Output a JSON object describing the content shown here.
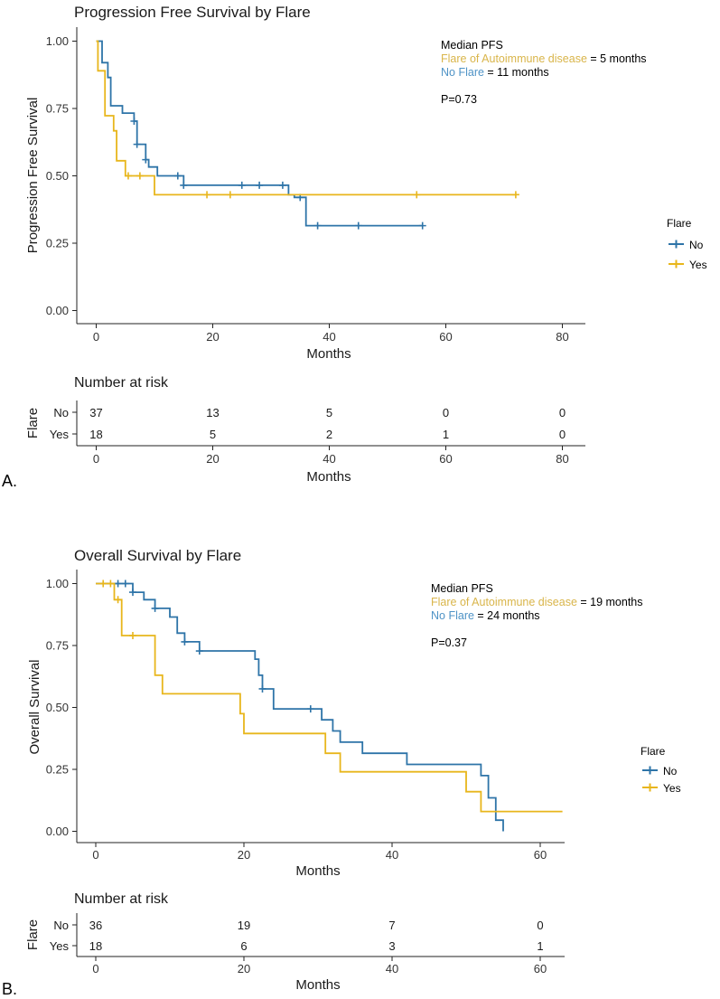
{
  "colors": {
    "no": "#2E74A8",
    "yes": "#E8B61C",
    "yes_text": "#D9B54A",
    "no_text": "#4F93C6"
  },
  "chart_data": [
    {
      "panel": "A.",
      "type": "line",
      "subtype": "kaplan-meier",
      "title": "Progression Free Survival by Flare",
      "xlabel": "Months",
      "ylabel": "Progression Free Survival",
      "xlim": [
        -4,
        84
      ],
      "ylim": [
        -0.05,
        1.0
      ],
      "xticks": [
        0,
        20,
        40,
        60,
        80
      ],
      "xtick_labels": [
        "0",
        "20",
        "40",
        "60",
        "80"
      ],
      "yticks": [
        0,
        0.25,
        0.5,
        0.75,
        1.0
      ],
      "ytick_labels": [
        "0.00",
        "0.25",
        "0.50",
        "0.75",
        "1.00"
      ],
      "grid": false,
      "annotation": {
        "heading": "Median PFS",
        "yes_label": "Flare of Autoimmune disease",
        "yes_value": " = 5 months",
        "no_label": "No Flare",
        "no_value": " = 11 months",
        "pvalue": "P=0.73"
      },
      "legend": {
        "title": "Flare",
        "items": [
          "No",
          "Yes"
        ],
        "placement": "right"
      },
      "series": [
        {
          "name": "No",
          "color_key": "no",
          "steps": [
            [
              0,
              1.0
            ],
            [
              1,
              0.92
            ],
            [
              2,
              0.865
            ],
            [
              2.5,
              0.76
            ],
            [
              4.5,
              0.733
            ],
            [
              6.5,
              0.703
            ],
            [
              7,
              0.617
            ],
            [
              8.5,
              0.56
            ],
            [
              9,
              0.533
            ],
            [
              10.5,
              0.5
            ],
            [
              14,
              0.5
            ],
            [
              15,
              0.465
            ],
            [
              33,
              0.43
            ],
            [
              34,
              0.42
            ],
            [
              36,
              0.315
            ],
            [
              56,
              0.315
            ]
          ],
          "censored": [
            [
              6.5,
              0.703
            ],
            [
              7,
              0.617
            ],
            [
              8.5,
              0.56
            ],
            [
              14,
              0.5
            ],
            [
              15,
              0.465
            ],
            [
              25,
              0.465
            ],
            [
              28,
              0.465
            ],
            [
              32,
              0.465
            ],
            [
              35,
              0.42
            ],
            [
              38,
              0.315
            ],
            [
              45,
              0.315
            ],
            [
              56,
              0.315
            ]
          ]
        },
        {
          "name": "Yes",
          "color_key": "yes",
          "steps": [
            [
              0,
              1.0
            ],
            [
              0.3,
              0.89
            ],
            [
              1.5,
              0.723
            ],
            [
              3,
              0.667
            ],
            [
              3.5,
              0.556
            ],
            [
              5,
              0.5
            ],
            [
              10,
              0.43
            ],
            [
              72,
              0.43
            ]
          ],
          "censored": [
            [
              5.5,
              0.5
            ],
            [
              7.5,
              0.5
            ],
            [
              19,
              0.43
            ],
            [
              23,
              0.43
            ],
            [
              55,
              0.43
            ],
            [
              72,
              0.43
            ]
          ]
        }
      ],
      "risk_table": {
        "title": "Number at risk",
        "row_axis_label": "Flare",
        "xlabel": "Months",
        "times": [
          0,
          20,
          40,
          60,
          80
        ],
        "rows": [
          {
            "group": "No",
            "color_key": "no_text",
            "counts": [
              "37",
              "13",
              "5",
              "0",
              "0"
            ]
          },
          {
            "group": "Yes",
            "color_key": "yes_text",
            "counts": [
              "18",
              "5",
              "2",
              "1",
              "0"
            ]
          }
        ]
      }
    },
    {
      "panel": "B.",
      "type": "line",
      "subtype": "kaplan-meier",
      "title": "Overall Survival by Flare",
      "xlabel": "Months",
      "ylabel": "Overall Survival",
      "xlim": [
        -3,
        63
      ],
      "ylim": [
        -0.05,
        1.0
      ],
      "xticks": [
        0,
        20,
        40,
        60
      ],
      "xtick_labels": [
        "0",
        "20",
        "40",
        "60"
      ],
      "yticks": [
        0,
        0.25,
        0.5,
        0.75,
        1.0
      ],
      "ytick_labels": [
        "0.00",
        "0.25",
        "0.50",
        "0.75",
        "1.00"
      ],
      "grid": false,
      "annotation": {
        "heading": "Median PFS",
        "yes_label": "Flare of Autoimmune disease",
        "yes_value": " = 19 months",
        "no_label": "No Flare",
        "no_value": " = 24 months",
        "pvalue": "P=0.37"
      },
      "legend": {
        "title": "Flare",
        "items": [
          "No",
          "Yes"
        ],
        "placement": "right"
      },
      "series": [
        {
          "name": "No",
          "color_key": "no",
          "steps": [
            [
              0,
              1.0
            ],
            [
              5,
              0.965
            ],
            [
              6.5,
              0.935
            ],
            [
              8,
              0.9
            ],
            [
              10,
              0.865
            ],
            [
              11,
              0.8
            ],
            [
              12,
              0.765
            ],
            [
              14,
              0.728
            ],
            [
              21.5,
              0.695
            ],
            [
              22,
              0.63
            ],
            [
              22.5,
              0.575
            ],
            [
              24,
              0.494
            ],
            [
              30.5,
              0.45
            ],
            [
              32,
              0.405
            ],
            [
              33,
              0.36
            ],
            [
              36,
              0.315
            ],
            [
              42,
              0.27
            ],
            [
              52,
              0.225
            ],
            [
              53,
              0.135
            ],
            [
              54,
              0.045
            ],
            [
              55,
              0.0
            ]
          ],
          "censored": [
            [
              3,
              1.0
            ],
            [
              4,
              1.0
            ],
            [
              5,
              0.965
            ],
            [
              8,
              0.9
            ],
            [
              12,
              0.765
            ],
            [
              14,
              0.728
            ],
            [
              22.5,
              0.575
            ],
            [
              29,
              0.494
            ]
          ]
        },
        {
          "name": "Yes",
          "color_key": "yes",
          "steps": [
            [
              0,
              1.0
            ],
            [
              2.5,
              0.935
            ],
            [
              3.5,
              0.79
            ],
            [
              8,
              0.63
            ],
            [
              9,
              0.555
            ],
            [
              19.5,
              0.475
            ],
            [
              20,
              0.395
            ],
            [
              31,
              0.315
            ],
            [
              33,
              0.24
            ],
            [
              50,
              0.16
            ],
            [
              52,
              0.08
            ],
            [
              63,
              0.08
            ]
          ],
          "censored": [
            [
              1,
              1.0
            ],
            [
              2,
              1.0
            ],
            [
              3,
              0.935
            ],
            [
              5,
              0.79
            ]
          ]
        }
      ],
      "risk_table": {
        "title": "Number at risk",
        "row_axis_label": "Flare",
        "xlabel": "Months",
        "times": [
          0,
          20,
          40,
          60
        ],
        "rows": [
          {
            "group": "No",
            "color_key": "no_text",
            "counts": [
              "36",
              "19",
              "7",
              "0"
            ]
          },
          {
            "group": "Yes",
            "color_key": "yes_text",
            "counts": [
              "18",
              "6",
              "3",
              "1"
            ]
          }
        ]
      }
    }
  ]
}
